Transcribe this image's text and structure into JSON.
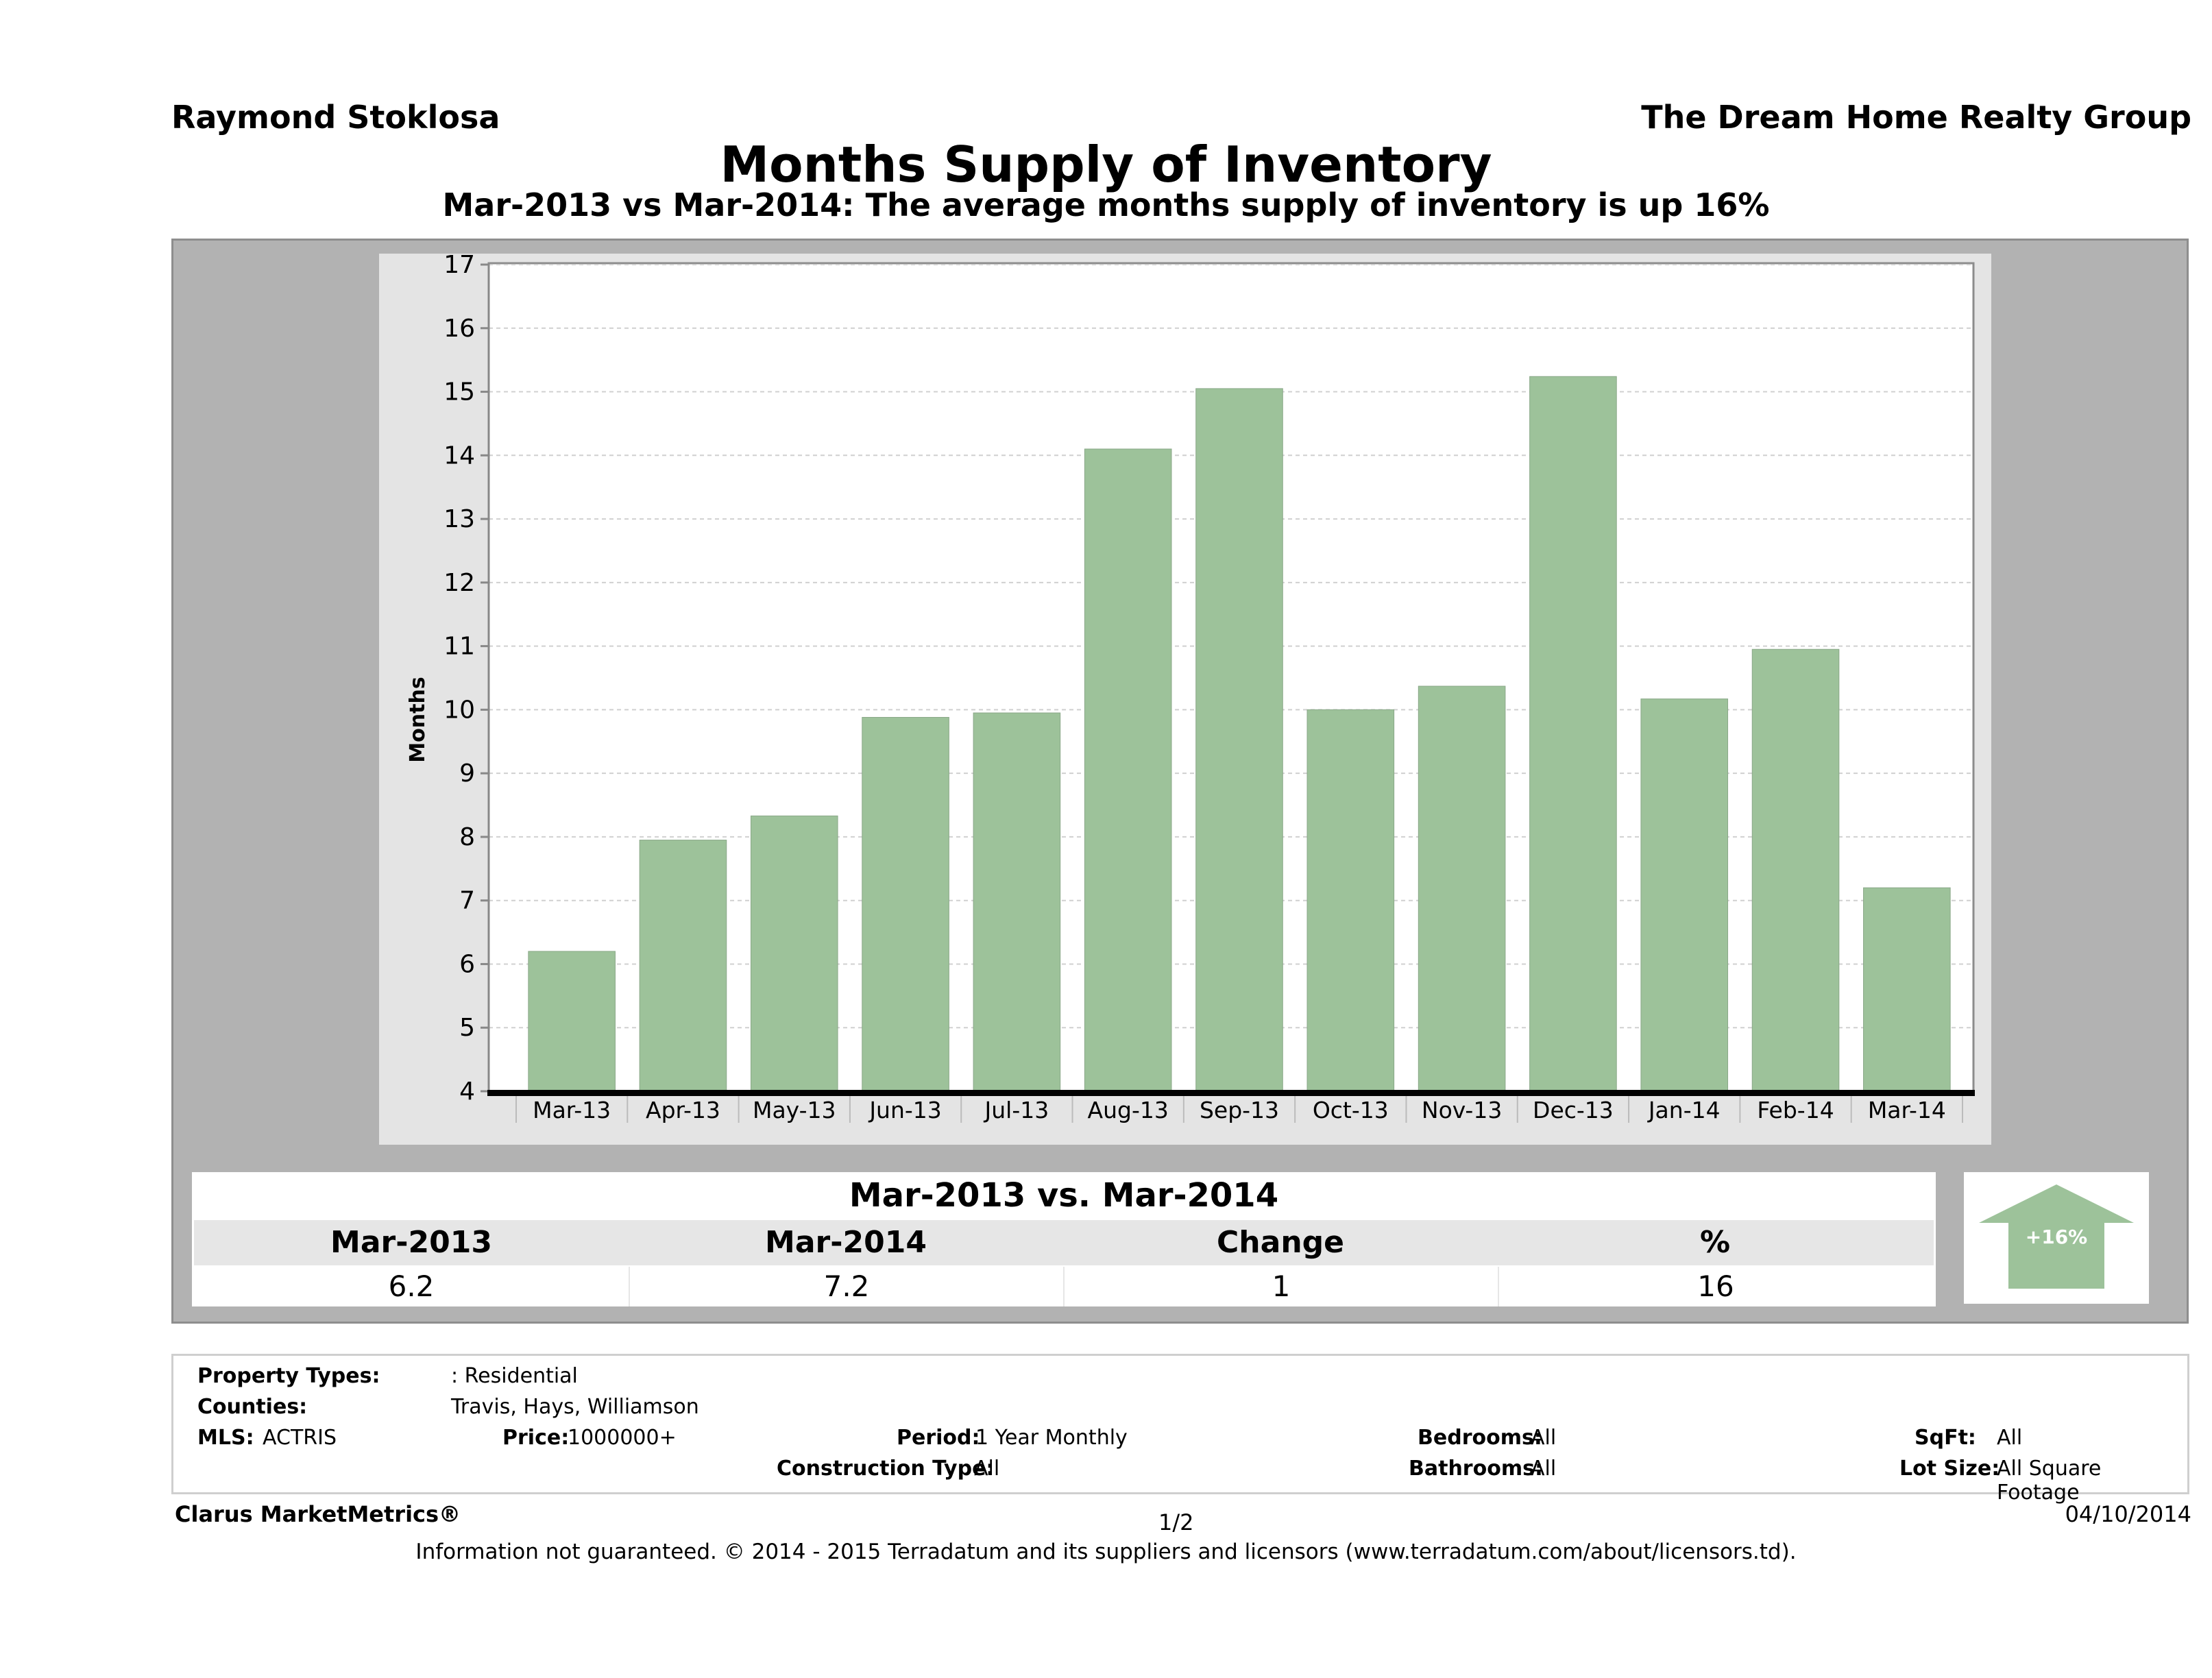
{
  "header": {
    "agent": "Raymond Stoklosa",
    "company": "The Dream Home Realty Group",
    "title": "Months Supply of Inventory",
    "subtitle": "Mar-2013 vs Mar-2014: The average months supply of inventory is up 16%"
  },
  "chart_data": {
    "type": "bar",
    "categories": [
      "Mar-13",
      "Apr-13",
      "May-13",
      "Jun-13",
      "Jul-13",
      "Aug-13",
      "Sep-13",
      "Oct-13",
      "Nov-13",
      "Dec-13",
      "Jan-14",
      "Feb-14",
      "Mar-14"
    ],
    "values": [
      6.2,
      7.95,
      8.33,
      9.88,
      9.95,
      14.1,
      15.05,
      10.0,
      10.37,
      15.24,
      10.17,
      10.95,
      7.2
    ],
    "ylabel": "Months",
    "ylim": [
      4,
      17
    ],
    "yticks": [
      4,
      5,
      6,
      7,
      8,
      9,
      10,
      11,
      12,
      13,
      14,
      15,
      16,
      17
    ],
    "grid": true,
    "bar_color": "#9dc29a"
  },
  "summary": {
    "title": "Mar-2013 vs. Mar-2014",
    "headers": [
      "Mar-2013",
      "Mar-2014",
      "Change",
      "%"
    ],
    "values": [
      "6.2",
      "7.2",
      "1",
      "16"
    ],
    "badge": "+16%",
    "badge_color": "#9dc29a"
  },
  "info": {
    "property_types_label": "Property Types:",
    "property_types": ": Residential",
    "counties_label": "Counties:",
    "counties": "Travis, Hays, Williamson",
    "mls_label": "MLS:",
    "mls": "ACTRIS",
    "price_label": "Price:",
    "price": "1000000+",
    "period_label": "Period:",
    "period": "1 Year Monthly",
    "construction_label": "Construction Type:",
    "construction": "All",
    "bedrooms_label": "Bedrooms:",
    "bedrooms": "All",
    "bathrooms_label": "Bathrooms:",
    "bathrooms": "All",
    "sqft_label": "SqFt:",
    "sqft": "All",
    "lot_label": "Lot Size:",
    "lot": "All Square Footage"
  },
  "footer": {
    "brand": "Clarus MarketMetrics®",
    "page": "1/2",
    "date": "04/10/2014",
    "disclaimer": "Information not guaranteed. © 2014 - 2015 Terradatum and its suppliers and licensors (www.terradatum.com/about/licensors.td)."
  }
}
